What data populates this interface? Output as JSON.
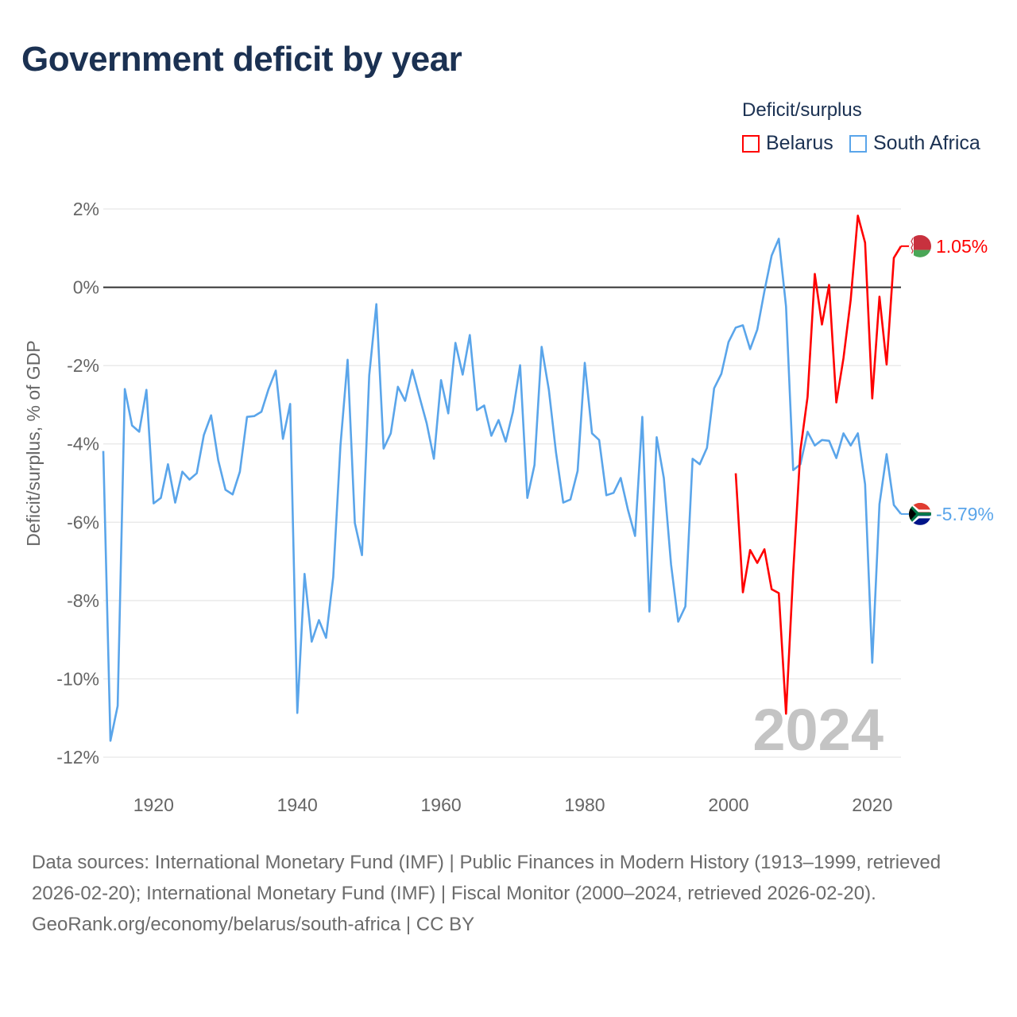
{
  "title": "Government deficit by year",
  "legend": {
    "title": "Deficit/surplus",
    "items": [
      {
        "label": "Belarus",
        "color": "#ff0000"
      },
      {
        "label": "South Africa",
        "color": "#5aa5ea"
      }
    ]
  },
  "watermark_year": "2024",
  "footer": {
    "sources": "Data sources: International Monetary Fund (IMF) | Public Finances in Modern History (1913–1999, retrieved 2026-02-20); International Monetary Fund (IMF) | Fiscal Monitor (2000–2024, retrieved 2026-02-20).",
    "credit": "GeoRank.org/economy/belarus/south-africa | CC BY"
  },
  "chart_data": {
    "type": "line",
    "title": "Government deficit by year",
    "xlabel": "",
    "ylabel": "Deficit/surplus, % of GDP",
    "xlim": [
      1913,
      2024
    ],
    "ylim": [
      -12,
      2
    ],
    "x_ticks": [
      1920,
      1940,
      1960,
      1980,
      2000,
      2020
    ],
    "x_tick_labels": [
      "1920",
      "1940",
      "1960",
      "1980",
      "2000",
      "2020"
    ],
    "y_ticks": [
      2,
      0,
      -2,
      -4,
      -6,
      -8,
      -10,
      -12
    ],
    "y_tick_labels": [
      "2%",
      "0%",
      "-2%",
      "-4%",
      "-6%",
      "-8%",
      "-10%",
      "-12%"
    ],
    "grid": true,
    "legend_position": "top-right",
    "series": [
      {
        "name": "Belarus",
        "color": "#ff0000",
        "end_label": "1.05%",
        "start_year": 2001,
        "values": [
          -4.75,
          -7.79,
          -6.71,
          -7.04,
          -6.69,
          -7.71,
          -7.81,
          -10.89,
          -7.28,
          -4.16,
          -2.8,
          0.34,
          -0.95,
          0.06,
          -2.94,
          -1.81,
          -0.32,
          1.83,
          1.14,
          -2.84,
          -0.24,
          -1.97,
          0.75,
          1.05
        ]
      },
      {
        "name": "South Africa",
        "color": "#5aa5ea",
        "end_label": "-5.79%",
        "start_year": 1913,
        "values": [
          -4.18,
          -11.58,
          -10.69,
          -2.6,
          -3.53,
          -3.69,
          -2.62,
          -5.52,
          -5.38,
          -4.52,
          -5.5,
          -4.71,
          -4.91,
          -4.75,
          -3.77,
          -3.27,
          -4.42,
          -5.17,
          -5.29,
          -4.71,
          -3.31,
          -3.29,
          -3.18,
          -2.6,
          -2.13,
          -3.87,
          -2.98,
          -10.87,
          -7.32,
          -9.05,
          -8.5,
          -8.95,
          -7.4,
          -4.04,
          -1.85,
          -6.02,
          -6.84,
          -2.25,
          -0.43,
          -4.12,
          -3.73,
          -2.54,
          -2.9,
          -2.11,
          -2.8,
          -3.47,
          -4.38,
          -2.37,
          -3.22,
          -1.42,
          -2.23,
          -1.22,
          -3.14,
          -3.02,
          -3.79,
          -3.39,
          -3.94,
          -3.18,
          -1.99,
          -5.38,
          -4.54,
          -1.52,
          -2.62,
          -4.22,
          -5.5,
          -5.42,
          -4.69,
          -1.93,
          -3.73,
          -3.9,
          -5.31,
          -5.25,
          -4.87,
          -5.68,
          -6.35,
          -3.31,
          -8.28,
          -3.83,
          -4.87,
          -7.08,
          -8.54,
          -8.15,
          -4.38,
          -4.52,
          -4.1,
          -2.58,
          -2.21,
          -1.4,
          -1.03,
          -0.97,
          -1.58,
          -1.08,
          -0.1,
          0.81,
          1.24,
          -0.49,
          -4.67,
          -4.52,
          -3.69,
          -4.04,
          -3.9,
          -3.92,
          -4.36,
          -3.73,
          -4.04,
          -3.73,
          -5.03,
          -9.59,
          -5.54,
          -4.26,
          -5.56,
          -5.79
        ]
      }
    ]
  }
}
